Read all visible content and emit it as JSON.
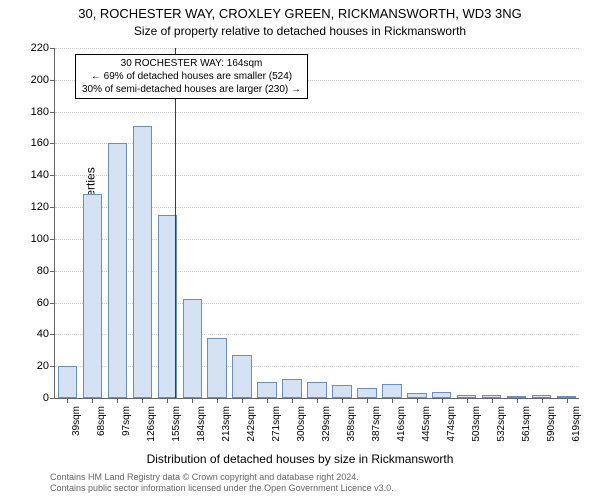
{
  "title": "30, ROCHESTER WAY, CROXLEY GREEN, RICKMANSWORTH, WD3 3NG",
  "subtitle": "Size of property relative to detached houses in Rickmansworth",
  "ylabel": "Number of detached properties",
  "xlabel": "Distribution of detached houses by size in Rickmansworth",
  "footer_line1": "Contains HM Land Registry data © Crown copyright and database right 2024.",
  "footer_line2": "Contains public sector information licensed under the Open Government Licence v3.0.",
  "annotation": {
    "line1": "30 ROCHESTER WAY: 164sqm",
    "line2": "← 69% of detached houses are smaller (524)",
    "line3": "30% of semi-detached houses are larger (230) →"
  },
  "chart": {
    "type": "histogram",
    "ylim": [
      0,
      220
    ],
    "ytick_step": 20,
    "bar_fill": "#d5e2f3",
    "bar_border": "#6a8fc4",
    "grid_color": "#cccccc",
    "axis_color": "#666666",
    "marker_color": "#cc0000",
    "background_color": "#ffffff",
    "title_fontsize": 13,
    "label_fontsize": 12,
    "tick_fontsize": 11,
    "xtick_fontsize": 10,
    "marker_value": 164,
    "categories": [
      "39sqm",
      "68sqm",
      "97sqm",
      "126sqm",
      "155sqm",
      "184sqm",
      "213sqm",
      "242sqm",
      "271sqm",
      "300sqm",
      "329sqm",
      "358sqm",
      "387sqm",
      "416sqm",
      "445sqm",
      "474sqm",
      "503sqm",
      "532sqm",
      "561sqm",
      "590sqm",
      "619sqm"
    ],
    "values": [
      20,
      128,
      160,
      171,
      115,
      62,
      38,
      27,
      10,
      12,
      10,
      8,
      6,
      9,
      3,
      4,
      2,
      2,
      1,
      2,
      1
    ],
    "bar_width_ratio": 0.78
  }
}
